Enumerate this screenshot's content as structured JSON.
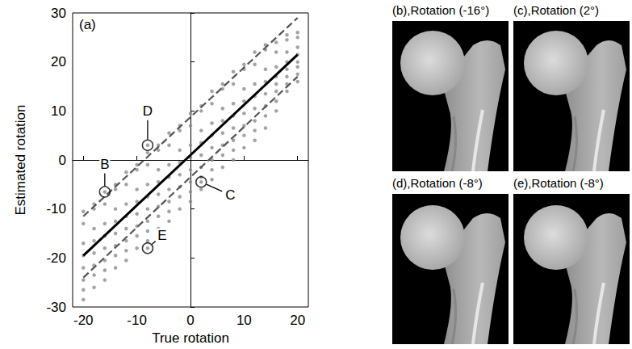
{
  "chart_data": {
    "type": "scatter",
    "panel_label": "(a)",
    "x_label": "True rotation",
    "y_label": "Estimated rotation",
    "xlim": [
      -22,
      22
    ],
    "ylim": [
      -30,
      30
    ],
    "xticks": [
      -20,
      -10,
      0,
      10,
      20
    ],
    "yticks": [
      -30,
      -20,
      -10,
      0,
      10,
      20,
      30
    ],
    "grid": false,
    "series": [
      {
        "type": "scatter",
        "color": "#8c8c8c",
        "marker": "circle",
        "x": [
          -20,
          -18,
          -16,
          -14,
          -12,
          -10,
          -8,
          -6,
          -4,
          -2,
          0,
          2,
          4,
          6,
          8,
          10,
          12,
          14,
          16,
          18,
          20
        ],
        "values": [
          [
            -28.5,
            -26.5,
            -24.5,
            -22,
            -19.5,
            -17,
            -13,
            -10.5
          ],
          [
            -26,
            -23.5,
            -21.5,
            -19,
            -16.5,
            -14,
            -10,
            -9
          ],
          [
            -24.5,
            -22.5,
            -20.5,
            -18,
            -15.5,
            -13,
            -9,
            -6.5
          ],
          [
            -22,
            -19.5,
            -17.5,
            -15,
            -12.5,
            -10,
            -6,
            -5
          ],
          [
            -20.5,
            -18.5,
            -16.5,
            -14,
            -11.5,
            -9,
            -5,
            -2.5
          ],
          [
            -18,
            -15.5,
            -13.5,
            -11,
            -8.5,
            -6,
            -2,
            -1
          ],
          [
            -18,
            -16.5,
            -14.5,
            -12.5,
            -10,
            -7.5,
            -5,
            -1,
            1.5,
            3
          ],
          [
            -14,
            -11.5,
            -9.5,
            -7,
            -4.5,
            -2,
            2,
            3
          ],
          [
            -12.5,
            -10.5,
            -8.5,
            -6,
            -3.5,
            -1,
            3,
            5.5
          ],
          [
            -10,
            -7.5,
            -5.5,
            -3,
            -0.5,
            2,
            6,
            7
          ],
          [
            -8.5,
            -6.5,
            -4.5,
            -2,
            0.5,
            3,
            7,
            9.5
          ],
          [
            -6,
            -4.5,
            -3.5,
            -1.5,
            1,
            3.5,
            6,
            10,
            11
          ],
          [
            -4,
            -2,
            0,
            2.5,
            5,
            7.5,
            11.5,
            14
          ],
          [
            -1.5,
            1,
            3,
            5.5,
            8,
            10.5,
            14.5,
            15.5
          ],
          [
            0,
            2,
            4,
            6.5,
            9,
            11.5,
            15.5,
            18
          ],
          [
            2.5,
            5,
            7,
            9.5,
            12,
            14.5,
            18.5,
            19.5
          ],
          [
            4,
            6,
            8,
            10.5,
            13,
            15.5,
            19.5,
            22
          ],
          [
            6.5,
            9,
            11,
            13.5,
            16,
            18.5,
            22.5,
            23.5
          ],
          [
            10,
            12,
            14,
            15.5,
            17,
            19,
            22,
            24
          ],
          [
            14,
            15.5,
            17,
            18.5,
            20,
            22,
            24.5,
            25.5
          ],
          [
            16,
            17.5,
            19,
            20,
            21.5,
            23,
            25,
            26
          ]
        ]
      },
      {
        "type": "line",
        "color": "#000000",
        "line_style": "solid",
        "x": [
          -20,
          20
        ],
        "values": [
          -19.5,
          21.5
        ]
      },
      {
        "type": "line",
        "color": "#555555",
        "line_style": "dashed",
        "x": [
          -20,
          20
        ],
        "values": [
          -11.5,
          29
        ]
      },
      {
        "type": "line",
        "color": "#555555",
        "line_style": "dashed",
        "x": [
          -20,
          20
        ],
        "values": [
          -24,
          17
        ]
      }
    ],
    "annotations": [
      {
        "text": "B",
        "x": -16,
        "y": -6.5
      },
      {
        "text": "C",
        "x": 2,
        "y": -4.5
      },
      {
        "text": "D",
        "x": -8,
        "y": 3
      },
      {
        "text": "E",
        "x": -8,
        "y": -18
      }
    ]
  },
  "panels": [
    {
      "title": "(b),Rotation (-16°)"
    },
    {
      "title": "(c),Rotation (2°)"
    },
    {
      "title": "(d),Rotation (-8°)"
    },
    {
      "title": "(e),Rotation (-8°)"
    }
  ]
}
